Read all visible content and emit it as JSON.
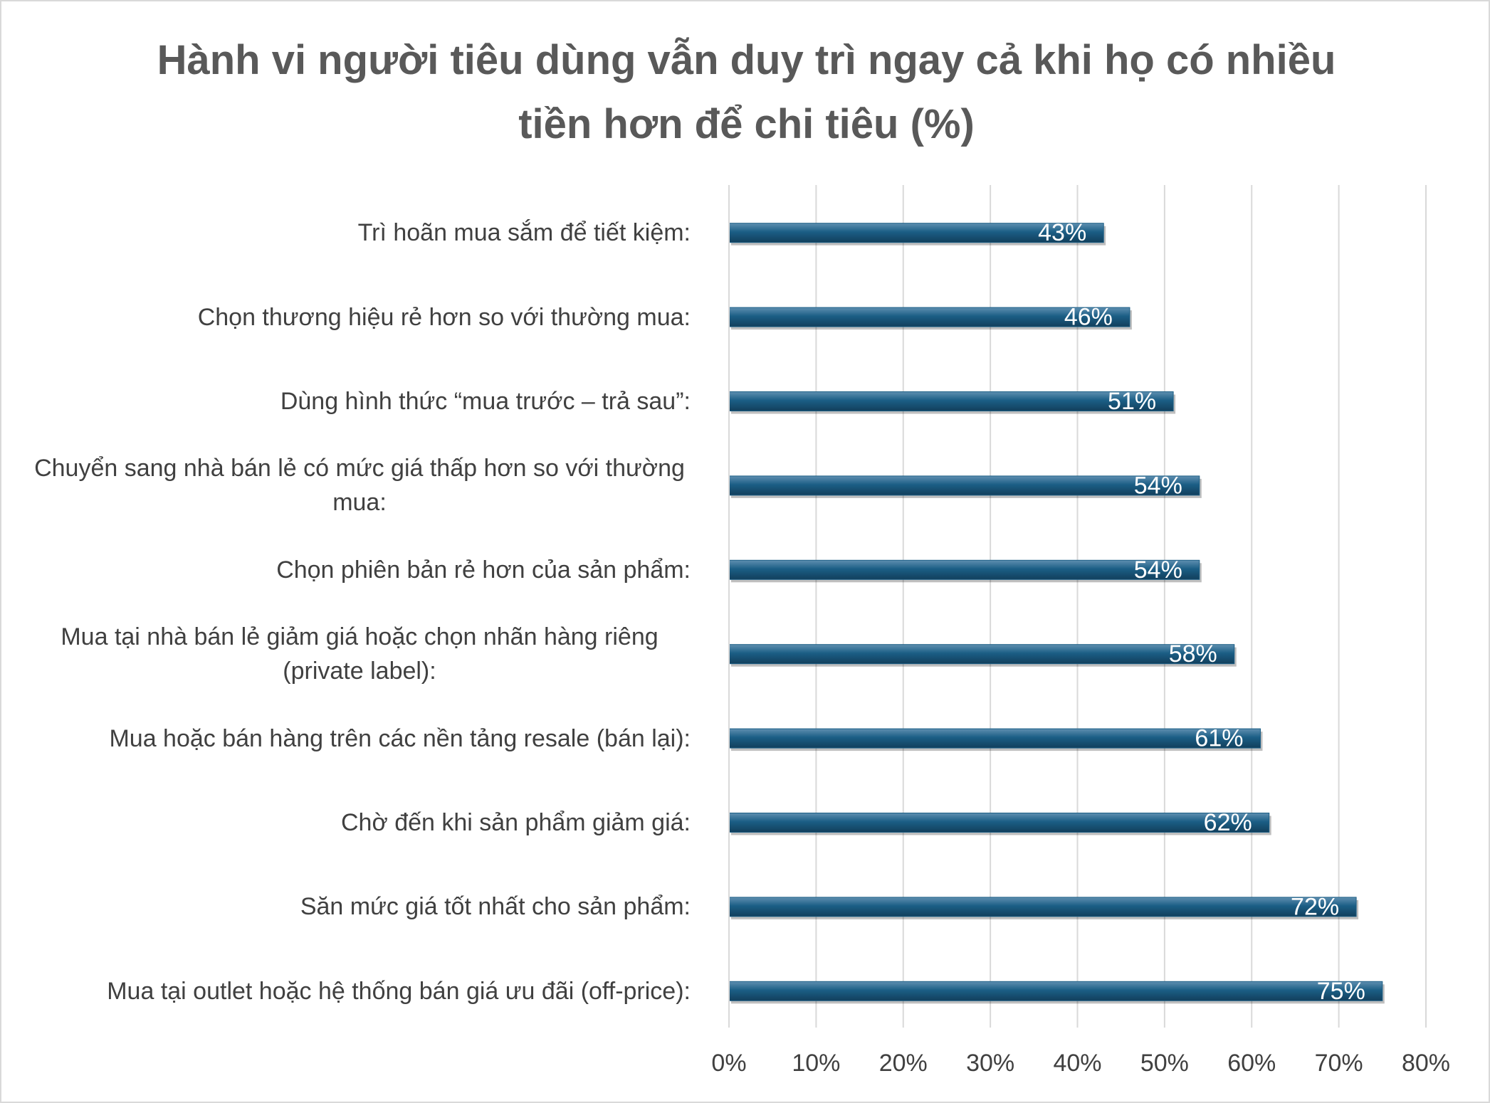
{
  "chart_data": {
    "type": "bar",
    "orientation": "horizontal",
    "title": "Hành vi người tiêu dùng vẫn duy trì ngay cả khi họ có nhiều tiền hơn để chi tiêu (%)",
    "categories": [
      "Trì hoãn mua sắm để tiết kiệm:",
      "Chọn thương hiệu rẻ hơn so với thường mua:",
      "Dùng hình thức “mua trước – trả sau”:",
      "Chuyển sang nhà bán lẻ có mức giá thấp hơn so với thường mua:",
      "Chọn phiên bản rẻ hơn của sản phẩm:",
      "Mua tại nhà bán lẻ giảm giá hoặc chọn nhãn hàng riêng (private label):",
      "Mua hoặc bán hàng trên các nền tảng resale (bán lại):",
      "Chờ đến khi sản phẩm giảm giá:",
      "Săn mức giá tốt nhất cho sản phẩm:",
      "Mua tại outlet hoặc hệ thống bán giá ưu đãi (off-price):"
    ],
    "values": [
      43,
      46,
      51,
      54,
      54,
      58,
      61,
      62,
      72,
      75
    ],
    "value_labels": [
      "43%",
      "46%",
      "51%",
      "54%",
      "54%",
      "58%",
      "61%",
      "62%",
      "72%",
      "75%"
    ],
    "color": "#1b5e85",
    "xlim": [
      0,
      80
    ],
    "xticks": [
      {
        "value": 0,
        "label": "0%"
      },
      {
        "value": 10,
        "label": "10%"
      },
      {
        "value": 20,
        "label": "20%"
      },
      {
        "value": 30,
        "label": "30%"
      },
      {
        "value": 40,
        "label": "40%"
      },
      {
        "value": 50,
        "label": "50%"
      },
      {
        "value": 60,
        "label": "60%"
      },
      {
        "value": 70,
        "label": "70%"
      },
      {
        "value": 80,
        "label": "80%"
      }
    ],
    "grid": true
  }
}
